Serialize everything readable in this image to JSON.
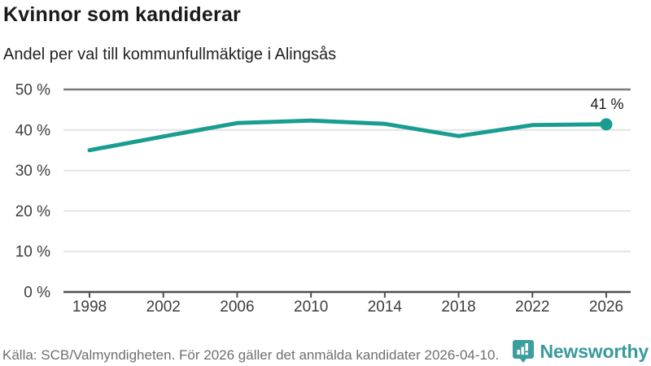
{
  "header": {
    "title": "Kvinnor som kandiderar",
    "subtitle": "Andel per val till kommunfullmäktige i Alingsås"
  },
  "chart_data": {
    "type": "line",
    "title": "Kvinnor som kandiderar",
    "subtitle": "Andel per val till kommunfullmäktige i Alingsås",
    "x": [
      1998,
      2002,
      2006,
      2010,
      2014,
      2018,
      2022,
      2026
    ],
    "values": [
      35,
      38.4,
      41.7,
      42.3,
      41.5,
      38.5,
      41.2,
      41.4
    ],
    "xtick_labels": [
      "1998",
      "2002",
      "2006",
      "2010",
      "2014",
      "2018",
      "2022",
      "2026"
    ],
    "yticks": [
      0,
      10,
      20,
      30,
      40,
      50
    ],
    "ytick_labels": [
      "0 %",
      "10 %",
      "20 %",
      "30 %",
      "40 %",
      "50 %"
    ],
    "ylim": [
      0,
      50
    ],
    "grid": true,
    "emphasized_gridline": 50,
    "legend": "none",
    "end_label": "41 %",
    "colors": {
      "line": "#199d90",
      "grid_light": "#e4e4e4",
      "grid_dark": "#7b7b7b",
      "axis": "#4f4f4f",
      "tick_text": "#3d3d3d",
      "annotation_text": "#1a1a1a"
    }
  },
  "footer": {
    "source": "Källa: SCB/Valmyndigheten. För 2026 gäller det anmälda kandidater 2026-04-10.",
    "brand": "Newsworthy"
  },
  "colors": {
    "accent_teal": "#199d90",
    "brand_teal": "#399a9b"
  }
}
